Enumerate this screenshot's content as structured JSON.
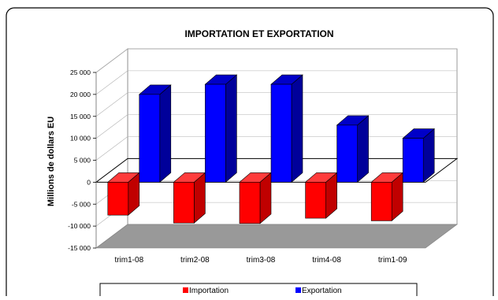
{
  "chart_data": {
    "type": "bar",
    "title": "IMPORTATION ET EXPORTATION",
    "ylabel": "Millions de dollars EU",
    "xlabel": "",
    "categories": [
      "trim1-08",
      "trim2-08",
      "trim3-08",
      "trim4-08",
      "trim1-09"
    ],
    "series": [
      {
        "name": "Importation",
        "color": "#ff0000",
        "side_color": "#c00000",
        "top_color": "#ff3b3b",
        "values": [
          -7500,
          -9300,
          -9400,
          -8200,
          -8800
        ]
      },
      {
        "name": "Exportation",
        "color": "#0000ff",
        "side_color": "#00009a",
        "top_color": "#0000c8",
        "values": [
          20000,
          22300,
          22300,
          13000,
          10000
        ]
      }
    ],
    "ylim": [
      -15000,
      25000
    ],
    "yticks": [
      25000,
      20000,
      15000,
      10000,
      5000,
      0,
      -5000,
      -10000,
      -15000
    ],
    "ytick_labels": [
      "25 000",
      "20 000",
      "15 000",
      "10 000",
      "5 000",
      "0",
      "-5 000",
      "-10 000",
      "-15 000"
    ],
    "grid": true,
    "three_d": true,
    "legend_position": "bottom",
    "colors": {
      "wall": "#ffffff",
      "floor": "#999999",
      "gridline": "#b0b0b0",
      "zero_plane": "#000000"
    }
  }
}
